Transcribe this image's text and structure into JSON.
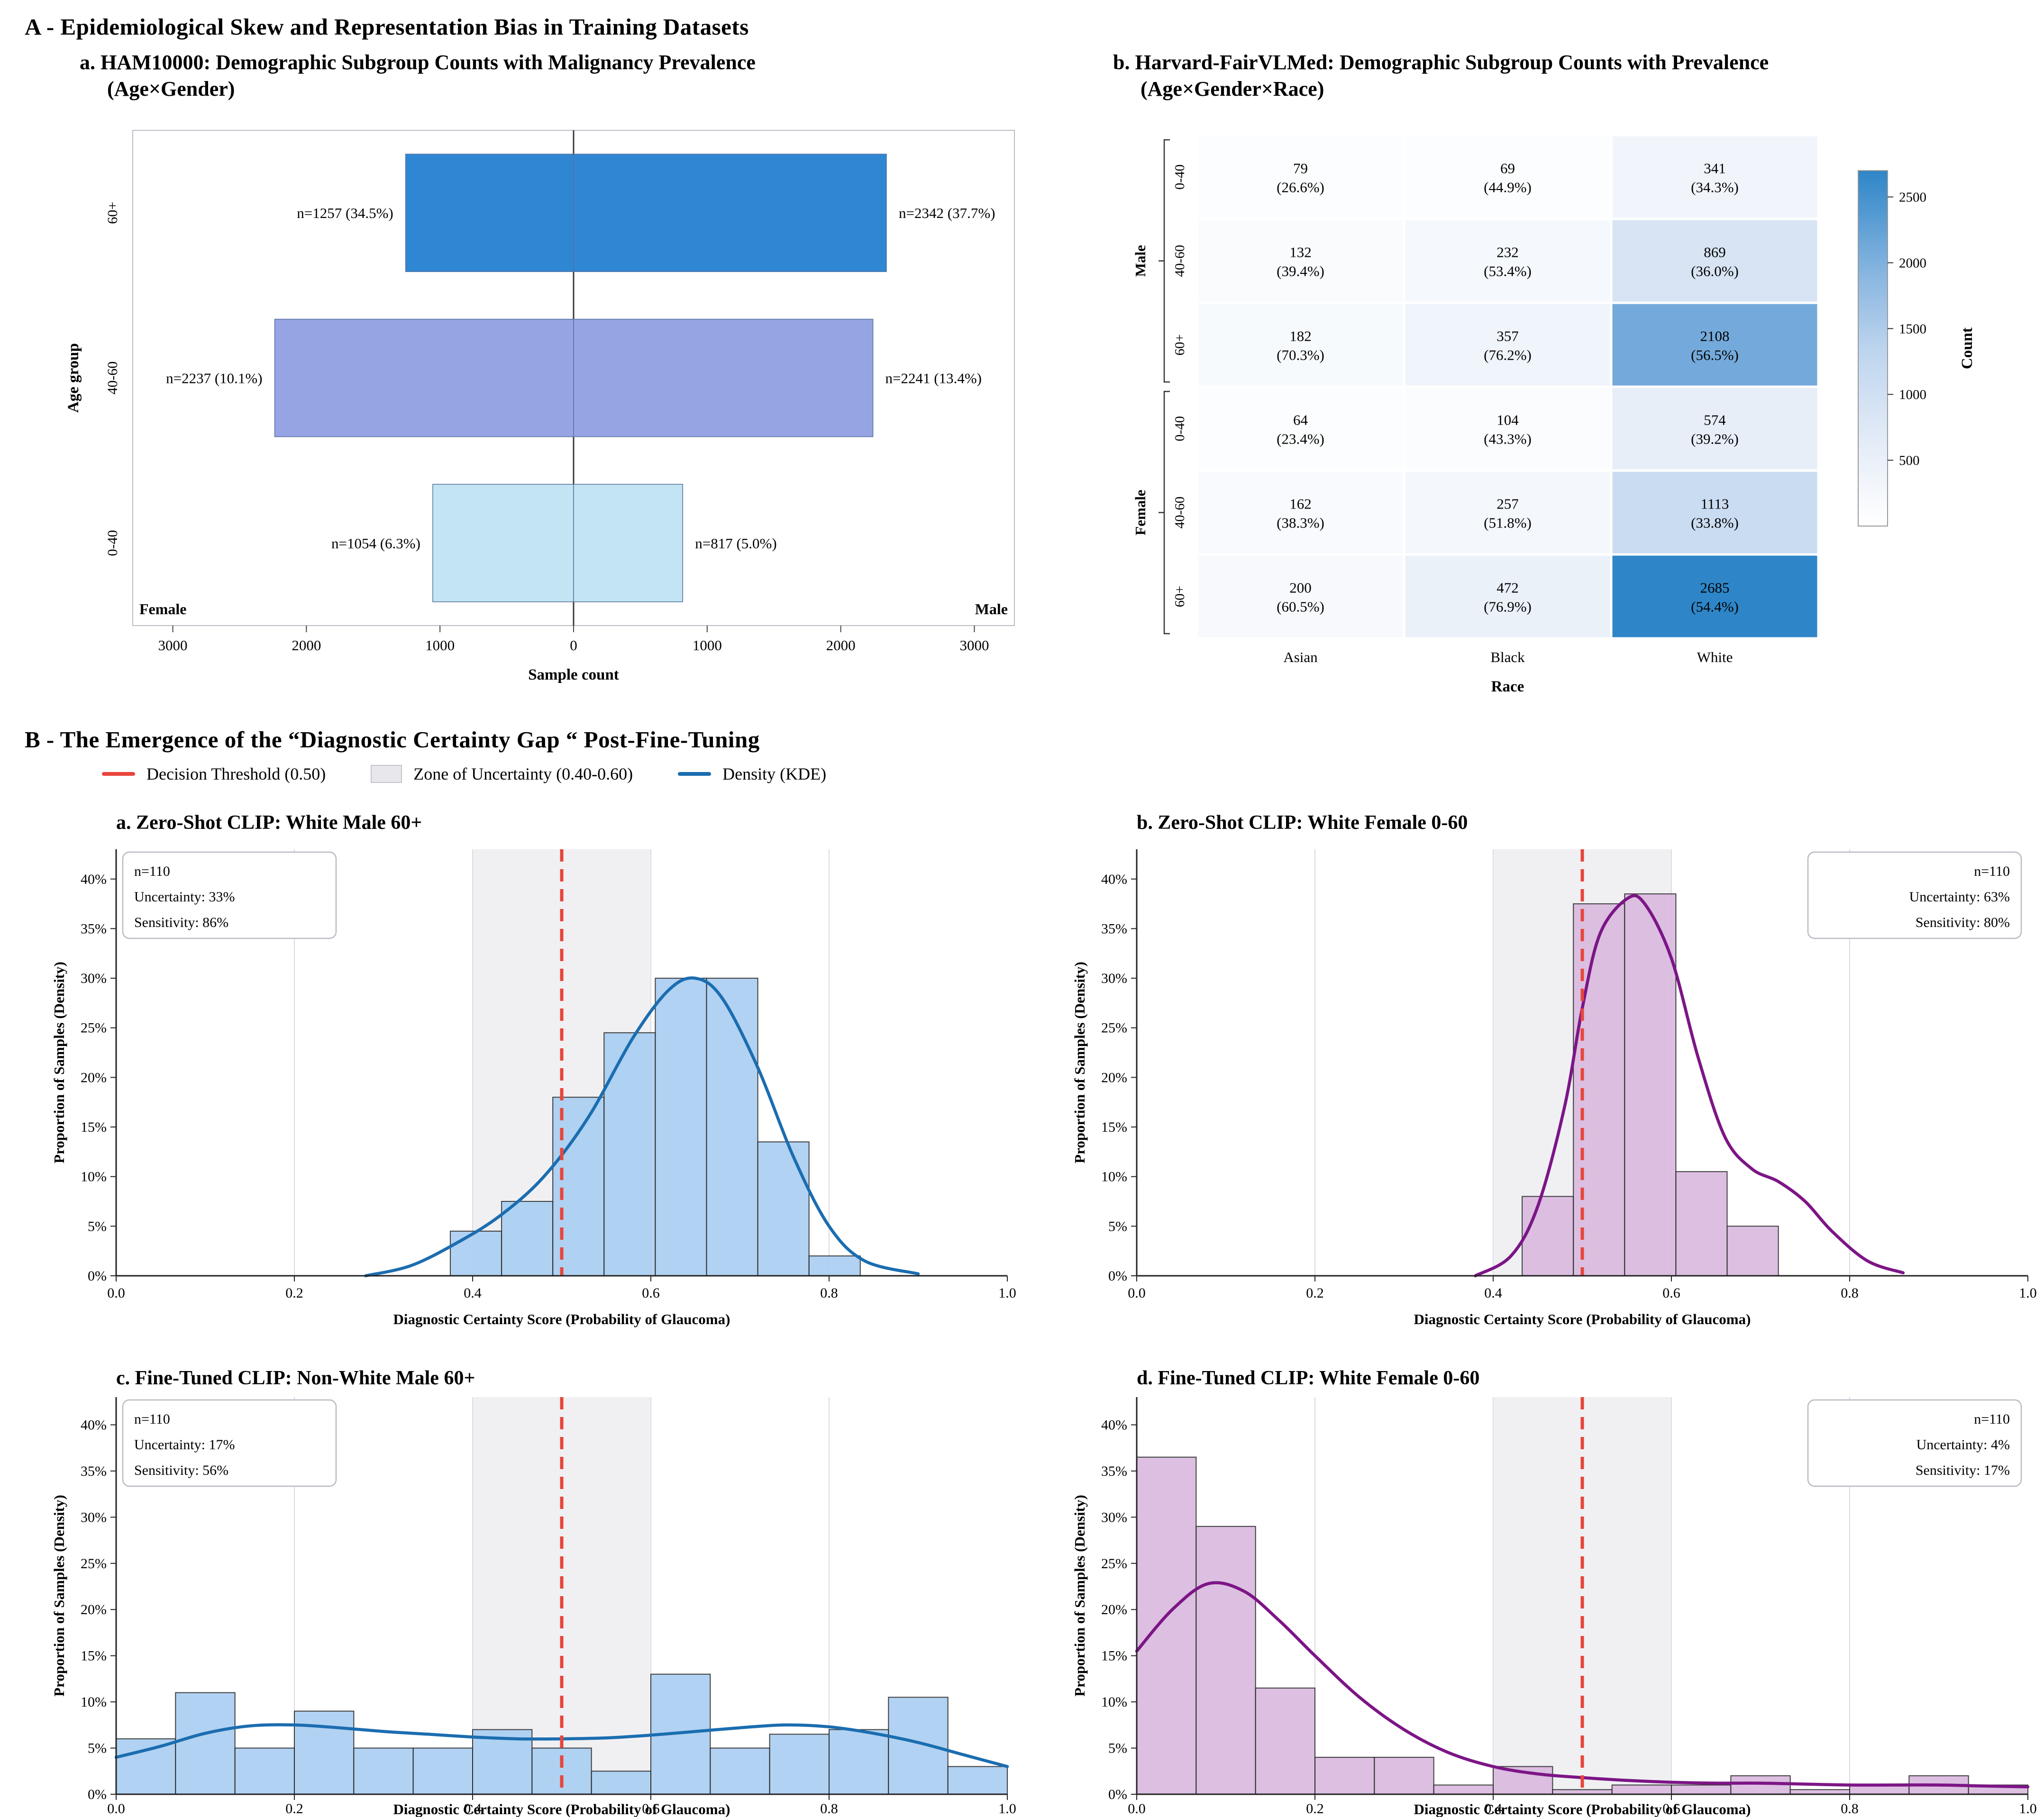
{
  "figure": {
    "panelA_title": "A - Epidemiological Skew and Representation Bias in Training Datasets",
    "panelB_title": "B - The Emergence of the “Diagnostic Certainty Gap “ Post-Fine-Tuning"
  },
  "chart_data": [
    {
      "id": "ham10000-pyramid",
      "type": "bar",
      "variant": "population_pyramid",
      "title_line1": "a. HAM10000: Demographic Subgroup Counts with Malignancy Prevalence",
      "title_line2": "(Age×Gender)",
      "xlabel": "Sample count",
      "ylabel": "Age group",
      "side_labels": {
        "left": "Female",
        "right": "Male"
      },
      "x_ticks": [
        -3000,
        -2000,
        -1000,
        0,
        1000,
        2000,
        3000
      ],
      "x_tick_labels": [
        "3000",
        "2000",
        "1000",
        "0",
        "1000",
        "2000",
        "3000"
      ],
      "xlim": 3300,
      "rows": [
        {
          "age_group": "60+",
          "female_n": 1257,
          "female_label": "n=1257 (34.5%)",
          "male_n": 2342,
          "male_label": "n=2342 (37.7%)",
          "color": "#2f87d4"
        },
        {
          "age_group": "40-60",
          "female_n": 2237,
          "female_label": "n=2237 (10.1%)",
          "male_n": 2241,
          "male_label": "n=2241 (13.4%)",
          "color": "#96a4e4"
        },
        {
          "age_group": "0-40",
          "female_n": 1054,
          "female_label": "n=1054 (6.3%)",
          "male_n": 817,
          "male_label": "n=817 (5.0%)",
          "color": "#c3e5f3"
        }
      ]
    },
    {
      "id": "fairvlmed-heatmap",
      "type": "heatmap",
      "title_line1": "b. Harvard-FairVLMed: Demographic Subgroup Counts with Prevalence",
      "title_line2": "(Age×Gender×Race)",
      "xlabel": "Race",
      "columns": [
        "Asian",
        "Black",
        "White"
      ],
      "row_groups": [
        {
          "label": "Male",
          "ages": [
            "0-40",
            "40-60",
            "60+"
          ]
        },
        {
          "label": "Female",
          "ages": [
            "0-40",
            "40-60",
            "60+"
          ]
        }
      ],
      "rows": [
        {
          "group": "Male",
          "age": "0-40",
          "values": [
            {
              "count": 79,
              "pct": "26.6%"
            },
            {
              "count": 69,
              "pct": "44.9%"
            },
            {
              "count": 341,
              "pct": "34.3%"
            }
          ]
        },
        {
          "group": "Male",
          "age": "40-60",
          "values": [
            {
              "count": 132,
              "pct": "39.4%"
            },
            {
              "count": 232,
              "pct": "53.4%"
            },
            {
              "count": 869,
              "pct": "36.0%"
            }
          ]
        },
        {
          "group": "Male",
          "age": "60+",
          "values": [
            {
              "count": 182,
              "pct": "70.3%"
            },
            {
              "count": 357,
              "pct": "76.2%"
            },
            {
              "count": 2108,
              "pct": "56.5%"
            }
          ]
        },
        {
          "group": "Female",
          "age": "0-40",
          "values": [
            {
              "count": 64,
              "pct": "23.4%"
            },
            {
              "count": 104,
              "pct": "43.3%"
            },
            {
              "count": 574,
              "pct": "39.2%"
            }
          ]
        },
        {
          "group": "Female",
          "age": "40-60",
          "values": [
            {
              "count": 162,
              "pct": "38.3%"
            },
            {
              "count": 257,
              "pct": "51.8%"
            },
            {
              "count": 1113,
              "pct": "33.8%"
            }
          ]
        },
        {
          "group": "Female",
          "age": "60+",
          "values": [
            {
              "count": 200,
              "pct": "60.5%"
            },
            {
              "count": 472,
              "pct": "76.9%"
            },
            {
              "count": 2685,
              "pct": "54.4%"
            }
          ]
        }
      ],
      "vmax": 2685,
      "colorbar": {
        "label": "Count",
        "ticks": [
          500,
          1000,
          1500,
          2000,
          2500
        ],
        "scale_max": 2700
      }
    },
    {
      "id": "certainty-histograms",
      "type": "histogram",
      "legend": [
        {
          "swatch": "line",
          "color": "#e8453a",
          "label": "Decision Threshold (0.50)"
        },
        {
          "swatch": "box",
          "color": "#e7e7ec",
          "label": "Zone of Uncertainty (0.40-0.60)"
        },
        {
          "swatch": "line",
          "color": "#1b6db0",
          "label": "Density (KDE)"
        }
      ],
      "shared": {
        "xlabel": "Diagnostic Certainty Score (Probability of Glaucoma)",
        "ylabel": "Proportion of Samples (Density)",
        "x_ticks": [
          0,
          0.2,
          0.4,
          0.6,
          0.8,
          1
        ],
        "x_tick_labels": [
          "0.0",
          "0.2",
          "0.4",
          "0.6",
          "0.8",
          "1.0"
        ],
        "y_tick_labels": [
          "0%",
          "5%",
          "10%",
          "15%",
          "20%",
          "25%",
          "30%",
          "35%",
          "40%"
        ],
        "ymax": 43,
        "threshold": 0.5,
        "uncertainty_zone": [
          0.4,
          0.6
        ]
      },
      "subplots": [
        {
          "title": "a. Zero-Shot CLIP: White Male 60+",
          "stats": [
            "n=110",
            "Uncertainty: 33%",
            "Sensitivity: 86%"
          ],
          "stats_side": "left",
          "bar_color": "#a9cef2",
          "kde_color": "#1b6db0",
          "bin_start": 0.375,
          "bin_width": 0.0575,
          "bar_heights_pct": [
            4.5,
            7.5,
            18,
            24.5,
            30,
            30,
            13.5,
            2
          ],
          "kde_points": [
            [
              0.28,
              0
            ],
            [
              0.33,
              1
            ],
            [
              0.38,
              3.2
            ],
            [
              0.43,
              6
            ],
            [
              0.48,
              10
            ],
            [
              0.53,
              16
            ],
            [
              0.58,
              24
            ],
            [
              0.62,
              28.8
            ],
            [
              0.65,
              30
            ],
            [
              0.68,
              28
            ],
            [
              0.72,
              21
            ],
            [
              0.76,
              12
            ],
            [
              0.8,
              5
            ],
            [
              0.84,
              1.5
            ],
            [
              0.9,
              0.2
            ]
          ]
        },
        {
          "title": "b. Zero-Shot CLIP: White Female 0-60",
          "stats": [
            "n=110",
            "Uncertainty: 63%",
            "Sensitivity: 80%"
          ],
          "stats_side": "right",
          "bar_color": "#d9b9de",
          "kde_color": "#7c1586",
          "bin_start": 0.4325,
          "bin_width": 0.0575,
          "bar_heights_pct": [
            8,
            37.5,
            38.5,
            10.5,
            5
          ],
          "kde_points": [
            [
              0.38,
              0
            ],
            [
              0.42,
              2
            ],
            [
              0.45,
              7
            ],
            [
              0.48,
              17
            ],
            [
              0.5,
              27
            ],
            [
              0.52,
              34.5
            ],
            [
              0.55,
              38
            ],
            [
              0.57,
              37.5
            ],
            [
              0.6,
              32
            ],
            [
              0.63,
              22
            ],
            [
              0.66,
              14
            ],
            [
              0.69,
              10.8
            ],
            [
              0.72,
              9.5
            ],
            [
              0.75,
              7.5
            ],
            [
              0.78,
              4.5
            ],
            [
              0.82,
              1.5
            ],
            [
              0.86,
              0.3
            ]
          ]
        },
        {
          "title": "c. Fine-Tuned CLIP: Non-White Male 60+",
          "stats": [
            "n=110",
            "Uncertainty: 17%",
            "Sensitivity: 56%"
          ],
          "stats_side": "left",
          "bar_color": "#a9cef2",
          "kde_color": "#1b6db0",
          "bin_start": 0,
          "bin_width": 0.0666667,
          "bar_heights_pct": [
            6,
            11,
            5,
            9,
            5,
            5,
            7,
            5,
            2.5,
            13,
            5,
            6.5,
            7,
            10.5,
            3
          ],
          "kde_points": [
            [
              0,
              4
            ],
            [
              0.05,
              5.2
            ],
            [
              0.1,
              6.6
            ],
            [
              0.15,
              7.4
            ],
            [
              0.2,
              7.5
            ],
            [
              0.25,
              7.2
            ],
            [
              0.3,
              6.8
            ],
            [
              0.35,
              6.5
            ],
            [
              0.4,
              6.2
            ],
            [
              0.45,
              6
            ],
            [
              0.5,
              6
            ],
            [
              0.55,
              6.1
            ],
            [
              0.6,
              6.4
            ],
            [
              0.65,
              6.8
            ],
            [
              0.7,
              7.2
            ],
            [
              0.75,
              7.5
            ],
            [
              0.8,
              7.3
            ],
            [
              0.85,
              6.6
            ],
            [
              0.9,
              5.6
            ],
            [
              0.95,
              4.3
            ],
            [
              1,
              3
            ]
          ]
        },
        {
          "title": "d. Fine-Tuned CLIP: White Female 0-60",
          "stats": [
            "n=110",
            "Uncertainty: 4%",
            "Sensitivity: 17%"
          ],
          "stats_side": "right",
          "bar_color": "#d9b9de",
          "kde_color": "#7c1586",
          "bin_start": 0,
          "bin_width": 0.0666667,
          "bar_heights_pct": [
            36.5,
            29,
            11.5,
            4,
            4,
            1,
            3,
            0.5,
            1,
            1,
            2,
            0.5,
            1,
            2,
            1
          ],
          "kde_points": [
            [
              0,
              15.5
            ],
            [
              0.04,
              20
            ],
            [
              0.08,
              22.8
            ],
            [
              0.12,
              22
            ],
            [
              0.16,
              18.8
            ],
            [
              0.2,
              15
            ],
            [
              0.25,
              10.5
            ],
            [
              0.3,
              7
            ],
            [
              0.35,
              4.5
            ],
            [
              0.4,
              3
            ],
            [
              0.45,
              2.2
            ],
            [
              0.5,
              1.8
            ],
            [
              0.55,
              1.5
            ],
            [
              0.6,
              1.3
            ],
            [
              0.65,
              1.2
            ],
            [
              0.7,
              1.2
            ],
            [
              0.75,
              1.1
            ],
            [
              0.8,
              1
            ],
            [
              0.85,
              1
            ],
            [
              0.9,
              1
            ],
            [
              0.95,
              0.9
            ],
            [
              1,
              0.8
            ]
          ]
        }
      ]
    }
  ]
}
